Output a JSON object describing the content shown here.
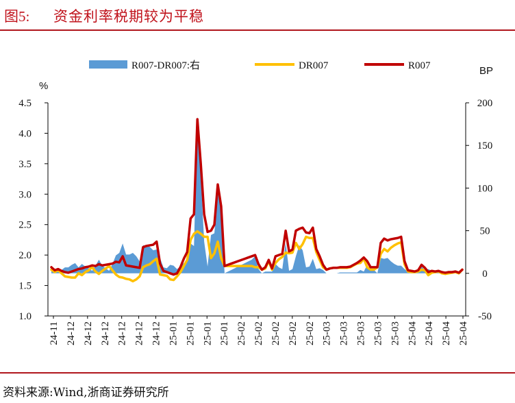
{
  "header": {
    "figure_label": "图5:",
    "title": "资金利率税期较为平稳"
  },
  "footer": {
    "source": "资料来源:Wind,浙商证券研究所"
  },
  "chart_data": {
    "type": "line",
    "left_unit": "%",
    "right_unit": "BP",
    "ylim_left": [
      1.0,
      4.5
    ],
    "ylim_right": [
      -50,
      200
    ],
    "left_ticks": [
      "1.0",
      "1.5",
      "2.0",
      "2.5",
      "3.0",
      "3.5",
      "4.0",
      "4.5"
    ],
    "right_ticks": [
      "-50",
      "0",
      "50",
      "100",
      "150",
      "200"
    ],
    "x_labels": [
      "24-11",
      "24-12",
      "24-12",
      "24-12",
      "24-12",
      "24-12",
      "24-12",
      "25-01",
      "25-01",
      "25-01",
      "25-01",
      "25-02",
      "25-02",
      "25-02",
      "25-02",
      "25-02",
      "25-03",
      "25-03",
      "25-03",
      "25-03",
      "25-03",
      "25-04",
      "25-04",
      "25-04",
      "25-04"
    ],
    "legend": {
      "spread": "R007-DR007:右",
      "dr007": "DR007",
      "r007": "R007"
    },
    "colors": {
      "spread": "#5b9bd5",
      "dr007": "#ffc000",
      "r007": "#c00000",
      "accent": "#c0121b"
    },
    "series": [
      {
        "name": "R007",
        "axis": "left",
        "values": [
          1.8,
          1.75,
          1.77,
          1.74,
          1.72,
          1.71,
          1.73,
          1.75,
          1.77,
          1.78,
          1.8,
          1.81,
          1.83,
          1.82,
          1.85,
          1.83,
          1.84,
          1.85,
          1.86,
          1.89,
          1.88,
          1.98,
          1.83,
          1.82,
          1.81,
          1.8,
          1.79,
          2.13,
          2.15,
          2.16,
          2.17,
          2.22,
          1.86,
          1.74,
          1.72,
          1.7,
          1.68,
          1.7,
          1.8,
          1.94,
          2.05,
          2.6,
          2.67,
          4.23,
          3.5,
          2.67,
          2.38,
          2.4,
          2.5,
          3.16,
          2.8,
          1.82,
          1.84,
          1.86,
          1.88,
          1.9,
          1.92,
          1.94,
          1.96,
          1.98,
          2.0,
          1.85,
          1.76,
          1.8,
          1.92,
          1.78,
          1.98,
          2.0,
          2.02,
          2.4,
          2.06,
          2.09,
          2.4,
          2.43,
          2.45,
          2.37,
          2.36,
          2.45,
          2.1,
          1.98,
          1.84,
          1.76,
          1.78,
          1.79,
          1.79,
          1.8,
          1.8,
          1.8,
          1.81,
          1.84,
          1.87,
          1.91,
          1.96,
          1.9,
          1.8,
          1.8,
          1.8,
          2.2,
          2.27,
          2.24,
          2.26,
          2.27,
          2.28,
          2.3,
          1.9,
          1.75,
          1.74,
          1.73,
          1.75,
          1.84,
          1.79,
          1.72,
          1.74,
          1.73,
          1.74,
          1.72,
          1.71,
          1.72,
          1.72,
          1.73,
          1.71,
          1.76
        ]
      },
      {
        "name": "DR007",
        "axis": "left",
        "values": [
          1.76,
          1.72,
          1.75,
          1.7,
          1.65,
          1.64,
          1.63,
          1.63,
          1.7,
          1.67,
          1.72,
          1.75,
          1.8,
          1.73,
          1.69,
          1.74,
          1.78,
          1.82,
          1.75,
          1.68,
          1.64,
          1.63,
          1.61,
          1.6,
          1.57,
          1.6,
          1.65,
          1.8,
          1.83,
          1.85,
          1.9,
          1.94,
          1.68,
          1.67,
          1.66,
          1.6,
          1.59,
          1.65,
          1.72,
          1.82,
          1.92,
          2.25,
          2.35,
          2.39,
          2.35,
          2.3,
          2.3,
          1.95,
          2.03,
          2.22,
          1.95,
          1.82,
          1.82,
          1.82,
          1.82,
          1.82,
          1.82,
          1.82,
          1.82,
          1.82,
          1.8,
          1.8,
          1.76,
          1.78,
          1.9,
          1.76,
          1.87,
          1.93,
          1.97,
          2.04,
          2.03,
          2.04,
          2.2,
          2.1,
          2.18,
          2.3,
          2.28,
          2.28,
          2.05,
          1.92,
          1.8,
          1.76,
          1.78,
          1.79,
          1.79,
          1.79,
          1.79,
          1.79,
          1.8,
          1.83,
          1.86,
          1.87,
          1.94,
          1.8,
          1.76,
          1.76,
          1.8,
          2.02,
          2.1,
          2.06,
          2.12,
          2.16,
          2.19,
          2.21,
          1.85,
          1.73,
          1.72,
          1.72,
          1.73,
          1.76,
          1.75,
          1.67,
          1.71,
          1.72,
          1.73,
          1.7,
          1.69,
          1.7,
          1.71,
          1.72,
          1.7,
          1.76
        ]
      },
      {
        "name": "R007-DR007:右",
        "axis": "right",
        "type": "area",
        "values": [
          4,
          3,
          2,
          4,
          7,
          7,
          10,
          12,
          7,
          11,
          8,
          6,
          3,
          9,
          16,
          9,
          6,
          3,
          11,
          21,
          24,
          35,
          22,
          22,
          24,
          20,
          14,
          33,
          32,
          31,
          27,
          28,
          18,
          7,
          6,
          10,
          9,
          5,
          8,
          12,
          13,
          35,
          32,
          184,
          115,
          37,
          8,
          45,
          47,
          94,
          85,
          0,
          2,
          4,
          6,
          8,
          10,
          12,
          14,
          16,
          20,
          5,
          0,
          2,
          2,
          2,
          11,
          7,
          5,
          36,
          3,
          5,
          20,
          33,
          27,
          7,
          8,
          17,
          5,
          6,
          4,
          0,
          0,
          0,
          0,
          1,
          1,
          1,
          1,
          1,
          1,
          4,
          2,
          10,
          4,
          4,
          0,
          18,
          17,
          18,
          14,
          11,
          9,
          9,
          5,
          2,
          2,
          1,
          2,
          8,
          4,
          5,
          3,
          1,
          1,
          2,
          2,
          2,
          1,
          1,
          1,
          0
        ]
      }
    ]
  }
}
